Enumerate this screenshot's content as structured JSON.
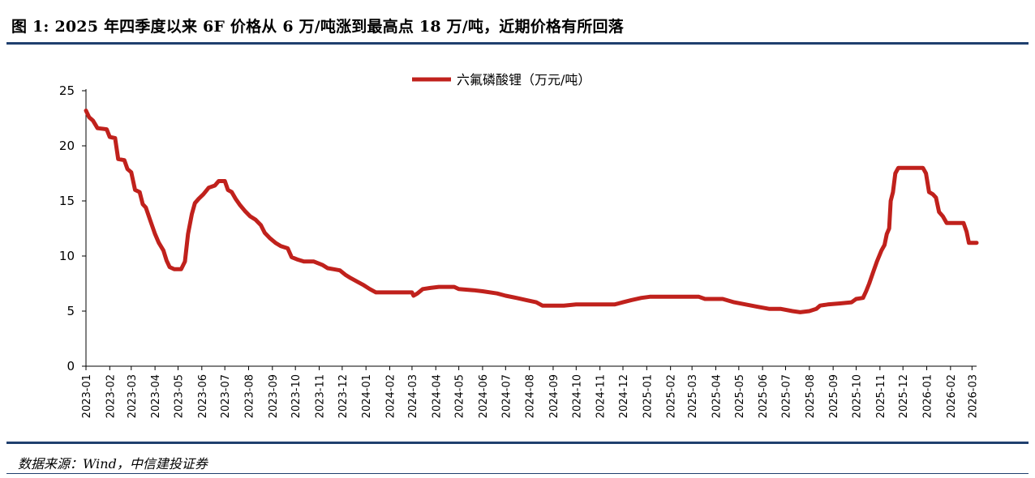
{
  "header": {
    "title": "图 1: 2025 年四季度以来 6F 价格从 6 万/吨涨到最高点 18 万/吨，近期价格有所回落"
  },
  "footer": {
    "source": "数据来源：Wind，中信建投证券"
  },
  "chart_data": {
    "type": "line",
    "title": "",
    "xlabel": "",
    "ylabel": "",
    "ylim": [
      0,
      25
    ],
    "yticks": [
      "0",
      "5",
      "10",
      "15",
      "20",
      "25"
    ],
    "x_ticks": [
      "2023-01",
      "2023-02",
      "2023-03",
      "2023-04",
      "2023-05",
      "2023-06",
      "2023-07",
      "2023-08",
      "2023-09",
      "2023-10",
      "2023-11",
      "2023-12",
      "2024-01",
      "2024-02",
      "2024-03",
      "2024-04",
      "2024-05",
      "2024-06",
      "2024-07",
      "2024-08",
      "2024-09",
      "2024-10",
      "2024-11",
      "2024-12",
      "2025-01",
      "2025-02",
      "2025-03",
      "2025-04",
      "2025-05",
      "2025-06",
      "2025-07",
      "2025-08",
      "2025-09",
      "2025-10",
      "2025-11",
      "2025-12",
      "2026-01",
      "2026-02",
      "2026-03"
    ],
    "legend": {
      "position": "top-center"
    },
    "grid": false,
    "colors": {
      "series": "#c0211c",
      "axis": "#000000"
    },
    "series": [
      {
        "name": "六氟磷酸锂（万元/吨）",
        "points": [
          [
            "2023-01-01",
            23.2
          ],
          [
            "2023-01-05",
            22.6
          ],
          [
            "2023-01-10",
            22.3
          ],
          [
            "2023-01-16",
            21.6
          ],
          [
            "2023-01-28",
            21.5
          ],
          [
            "2023-02-01",
            20.8
          ],
          [
            "2023-02-08",
            20.7
          ],
          [
            "2023-02-12",
            18.8
          ],
          [
            "2023-02-20",
            18.7
          ],
          [
            "2023-02-24",
            17.9
          ],
          [
            "2023-03-01",
            17.6
          ],
          [
            "2023-03-06",
            16.0
          ],
          [
            "2023-03-12",
            15.8
          ],
          [
            "2023-03-16",
            14.7
          ],
          [
            "2023-03-20",
            14.4
          ],
          [
            "2023-03-26",
            13.2
          ],
          [
            "2023-04-01",
            12.0
          ],
          [
            "2023-04-06",
            11.2
          ],
          [
            "2023-04-12",
            10.5
          ],
          [
            "2023-04-16",
            9.6
          ],
          [
            "2023-04-20",
            9.0
          ],
          [
            "2023-04-26",
            8.8
          ],
          [
            "2023-05-05",
            8.8
          ],
          [
            "2023-05-10",
            9.5
          ],
          [
            "2023-05-14",
            12.0
          ],
          [
            "2023-05-19",
            13.8
          ],
          [
            "2023-05-23",
            14.8
          ],
          [
            "2023-05-28",
            15.2
          ],
          [
            "2023-06-03",
            15.6
          ],
          [
            "2023-06-10",
            16.2
          ],
          [
            "2023-06-18",
            16.4
          ],
          [
            "2023-06-23",
            16.8
          ],
          [
            "2023-07-01",
            16.8
          ],
          [
            "2023-07-05",
            16.0
          ],
          [
            "2023-07-10",
            15.8
          ],
          [
            "2023-07-15",
            15.2
          ],
          [
            "2023-07-21",
            14.6
          ],
          [
            "2023-07-27",
            14.1
          ],
          [
            "2023-08-03",
            13.6
          ],
          [
            "2023-08-10",
            13.3
          ],
          [
            "2023-08-17",
            12.8
          ],
          [
            "2023-08-22",
            12.1
          ],
          [
            "2023-08-29",
            11.6
          ],
          [
            "2023-09-05",
            11.2
          ],
          [
            "2023-09-12",
            10.9
          ],
          [
            "2023-09-21",
            10.7
          ],
          [
            "2023-09-26",
            9.9
          ],
          [
            "2023-10-03",
            9.7
          ],
          [
            "2023-10-12",
            9.5
          ],
          [
            "2023-10-25",
            9.5
          ],
          [
            "2023-11-05",
            9.2
          ],
          [
            "2023-11-12",
            8.9
          ],
          [
            "2023-11-20",
            8.8
          ],
          [
            "2023-11-28",
            8.7
          ],
          [
            "2023-12-05",
            8.3
          ],
          [
            "2023-12-12",
            8.0
          ],
          [
            "2023-12-20",
            7.7
          ],
          [
            "2023-12-28",
            7.4
          ],
          [
            "2024-01-06",
            7.0
          ],
          [
            "2024-01-14",
            6.7
          ],
          [
            "2024-01-25",
            6.7
          ],
          [
            "2024-02-15",
            6.7
          ],
          [
            "2024-03-01",
            6.7
          ],
          [
            "2024-03-03",
            6.4
          ],
          [
            "2024-03-08",
            6.6
          ],
          [
            "2024-03-15",
            7.0
          ],
          [
            "2024-03-25",
            7.1
          ],
          [
            "2024-04-05",
            7.2
          ],
          [
            "2024-04-25",
            7.2
          ],
          [
            "2024-05-01",
            7.0
          ],
          [
            "2024-05-20",
            6.9
          ],
          [
            "2024-06-01",
            6.8
          ],
          [
            "2024-06-20",
            6.6
          ],
          [
            "2024-07-01",
            6.4
          ],
          [
            "2024-07-15",
            6.2
          ],
          [
            "2024-07-28",
            6.0
          ],
          [
            "2024-08-10",
            5.8
          ],
          [
            "2024-08-18",
            5.5
          ],
          [
            "2024-08-30",
            5.5
          ],
          [
            "2024-09-15",
            5.5
          ],
          [
            "2024-10-01",
            5.6
          ],
          [
            "2024-10-15",
            5.6
          ],
          [
            "2024-11-01",
            5.6
          ],
          [
            "2024-11-20",
            5.6
          ],
          [
            "2024-12-01",
            5.8
          ],
          [
            "2024-12-12",
            6.0
          ],
          [
            "2024-12-25",
            6.2
          ],
          [
            "2025-01-05",
            6.3
          ],
          [
            "2025-02-01",
            6.3
          ],
          [
            "2025-03-01",
            6.3
          ],
          [
            "2025-03-10",
            6.3
          ],
          [
            "2025-03-18",
            6.1
          ],
          [
            "2025-04-10",
            6.1
          ],
          [
            "2025-04-25",
            5.8
          ],
          [
            "2025-05-10",
            5.6
          ],
          [
            "2025-05-25",
            5.4
          ],
          [
            "2025-06-10",
            5.2
          ],
          [
            "2025-06-25",
            5.2
          ],
          [
            "2025-07-10",
            5.0
          ],
          [
            "2025-07-20",
            4.9
          ],
          [
            "2025-08-01",
            5.0
          ],
          [
            "2025-08-10",
            5.2
          ],
          [
            "2025-08-15",
            5.5
          ],
          [
            "2025-08-25",
            5.6
          ],
          [
            "2025-09-10",
            5.7
          ],
          [
            "2025-09-25",
            5.8
          ],
          [
            "2025-10-01",
            6.1
          ],
          [
            "2025-10-10",
            6.2
          ],
          [
            "2025-10-14",
            6.8
          ],
          [
            "2025-10-18",
            7.5
          ],
          [
            "2025-10-23",
            8.5
          ],
          [
            "2025-10-28",
            9.5
          ],
          [
            "2025-11-03",
            10.5
          ],
          [
            "2025-11-07",
            11.0
          ],
          [
            "2025-11-10",
            12.0
          ],
          [
            "2025-11-13",
            12.5
          ],
          [
            "2025-11-15",
            15.0
          ],
          [
            "2025-11-18",
            15.8
          ],
          [
            "2025-11-21",
            17.5
          ],
          [
            "2025-11-25",
            18.0
          ],
          [
            "2025-12-10",
            18.0
          ],
          [
            "2025-12-27",
            18.0
          ],
          [
            "2025-12-31",
            17.5
          ],
          [
            "2026-01-04",
            15.8
          ],
          [
            "2026-01-09",
            15.6
          ],
          [
            "2026-01-13",
            15.3
          ],
          [
            "2026-01-17",
            14.0
          ],
          [
            "2026-01-22",
            13.6
          ],
          [
            "2026-01-27",
            13.0
          ],
          [
            "2026-02-05",
            13.0
          ],
          [
            "2026-02-18",
            13.0
          ],
          [
            "2026-02-22",
            12.2
          ],
          [
            "2026-02-25",
            11.2
          ],
          [
            "2026-03-07",
            11.2
          ]
        ]
      }
    ]
  }
}
